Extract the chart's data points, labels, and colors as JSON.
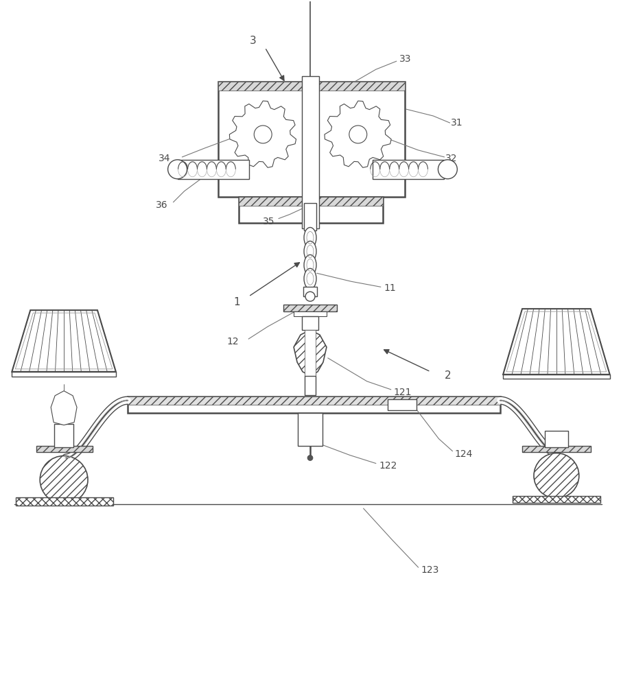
{
  "bg_color": "#ffffff",
  "line_color": "#4a4a4a",
  "figsize": [
    9.05,
    10.0
  ],
  "dpi": 100,
  "label_fontsize": 10
}
